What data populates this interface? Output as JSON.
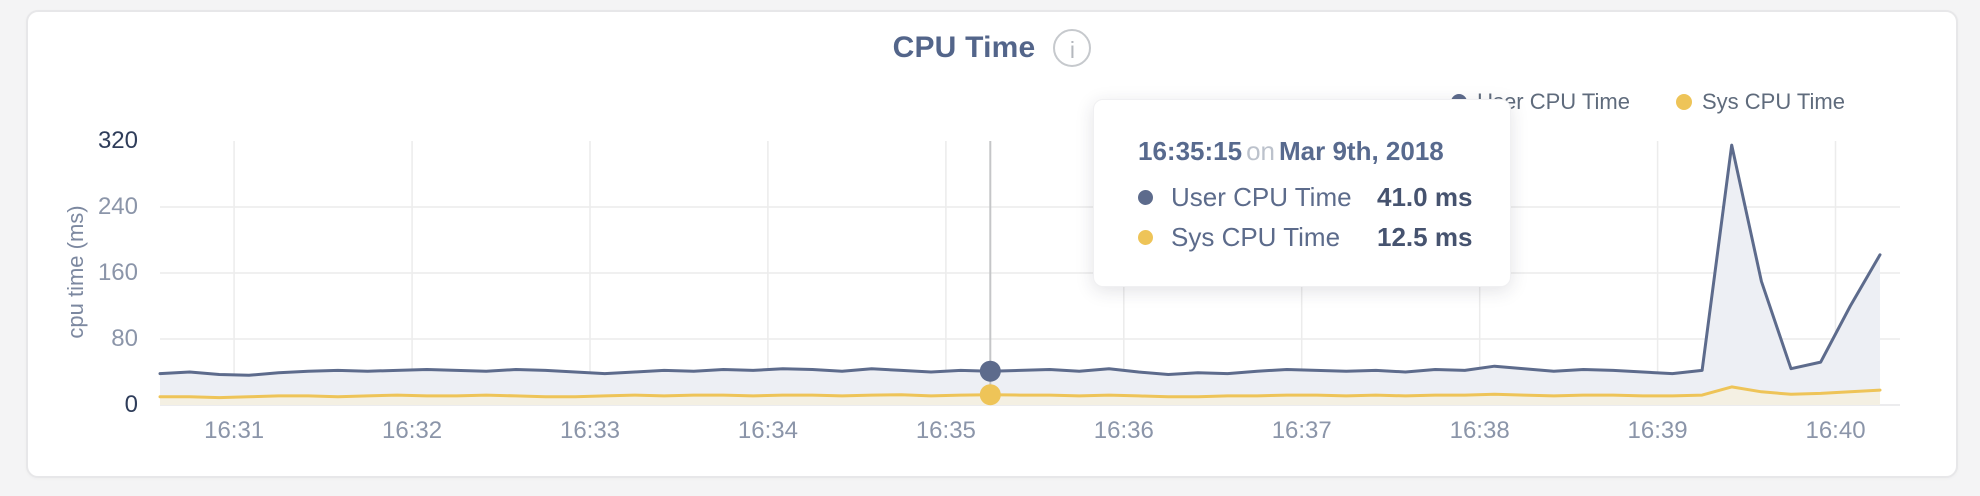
{
  "header": {
    "title": "CPU Time",
    "info_glyph": "i"
  },
  "legend": {
    "items": [
      {
        "label": "User CPU Time"
      },
      {
        "label": "Sys CPU Time"
      }
    ]
  },
  "tooltip": {
    "time": "16:35:15",
    "connector": "on",
    "date": "Mar 9th, 2018",
    "rows": [
      {
        "label": "User CPU Time",
        "value": "41.0 ms"
      },
      {
        "label": "Sys CPU Time",
        "value": "12.5 ms"
      }
    ]
  },
  "colors": {
    "title": "#53658a",
    "grid": "#ececec",
    "baseline": "#e6e6e8",
    "crosshair": "#c5c6c8",
    "tick": "#8b95a9",
    "tick_emphasis": "#2f3d5a",
    "page_background": "#f4f4f5",
    "card_background": "#ffffff"
  },
  "chart_data": {
    "type": "area",
    "title": "CPU Time",
    "xlabel": "",
    "ylabel": "cpu time (ms)",
    "ylim": [
      0,
      320
    ],
    "y_ticks": [
      320,
      240,
      160,
      80,
      0
    ],
    "y_ticks_emphasized": [
      320,
      0
    ],
    "x_ticks": [
      "16:31",
      "16:32",
      "16:33",
      "16:34",
      "16:35",
      "16:36",
      "16:37",
      "16:38",
      "16:39",
      "16:40"
    ],
    "x_start": "16:30:35",
    "x_end": "16:40:15",
    "sample_interval_s": 10,
    "grid": true,
    "legend_position": "top-right",
    "series": [
      {
        "name": "User CPU Time",
        "color": "#5d6b8c",
        "fill": "#edeff4",
        "values": [
          38,
          40,
          37,
          36,
          39,
          41,
          42,
          41,
          42,
          43,
          42,
          41,
          43,
          42,
          40,
          38,
          40,
          42,
          41,
          43,
          42,
          44,
          43,
          41,
          44,
          42,
          40,
          42,
          41,
          42,
          43,
          41,
          44,
          40,
          37,
          39,
          38,
          41,
          43,
          42,
          41,
          42,
          40,
          43,
          42,
          47,
          44,
          41,
          43,
          42,
          40,
          38,
          42,
          315,
          150,
          44,
          52,
          120,
          182
        ]
      },
      {
        "name": "Sys CPU Time",
        "color": "#eec458",
        "fill": "#f4f0e3",
        "values": [
          10,
          10,
          9,
          10,
          11,
          11,
          10,
          11,
          12,
          11,
          11,
          12,
          11,
          10,
          10,
          11,
          12,
          11,
          12,
          12,
          11,
          12,
          12,
          11,
          12,
          12.5,
          11,
          12,
          12.5,
          12,
          12,
          11,
          12,
          11,
          10,
          10,
          11,
          11,
          12,
          12,
          11,
          12,
          11,
          12,
          12,
          13,
          12,
          11,
          12,
          12,
          11,
          11,
          12,
          22,
          16,
          13,
          14,
          16,
          18
        ]
      }
    ],
    "selected_point": {
      "time": "16:35:15",
      "date": "Mar 9th, 2018",
      "values": [
        {
          "series": "User CPU Time",
          "value_ms": 41.0
        },
        {
          "series": "Sys CPU Time",
          "value_ms": 12.5
        }
      ]
    }
  }
}
